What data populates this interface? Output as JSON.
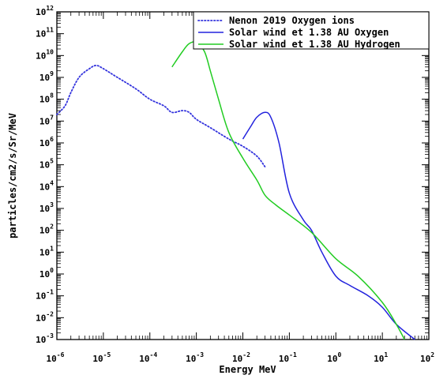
{
  "chart_data": {
    "type": "line",
    "xlabel": "Energy MeV",
    "ylabel": "particles/cm2/s/Sr/MeV",
    "xscale": "log",
    "yscale": "log",
    "xlim": [
      1e-06,
      100
    ],
    "ylim": [
      0.001,
      1000000000000.0
    ],
    "grid": false,
    "legend_position": "top-right",
    "x_tick_labels": [
      "10-6",
      "10-5",
      "10-4",
      "10-3",
      "10-2",
      "10-1",
      "100",
      "101",
      "102"
    ],
    "y_tick_labels": [
      "10-3",
      "10-2",
      "10-1",
      "100",
      "101",
      "102",
      "103",
      "104",
      "105",
      "106",
      "107",
      "108",
      "109",
      "1010",
      "1011",
      "1012"
    ],
    "series": [
      {
        "name": "Nenon 2019 Oxygen ions",
        "color": "#3333dd",
        "style": "dotted",
        "x": [
          1e-06,
          1.5e-06,
          2e-06,
          3e-06,
          5e-06,
          7e-06,
          1e-05,
          2e-05,
          5e-05,
          0.0001,
          0.0002,
          0.0003,
          0.0005,
          0.0007,
          0.001,
          0.002,
          0.005,
          0.01,
          0.02,
          0.03
        ],
        "y": [
          20000000.0,
          50000000.0,
          200000000.0,
          1000000000.0,
          2500000000.0,
          3500000000.0,
          2500000000.0,
          1000000000.0,
          300000000.0,
          100000000.0,
          50000000.0,
          25000000.0,
          30000000.0,
          25000000.0,
          12000000.0,
          5000000.0,
          1500000.0,
          700000.0,
          250000.0,
          80000.0
        ]
      },
      {
        "name": "Solar wind et 1.38 AU Oxygen",
        "color": "#2222dd",
        "style": "solid",
        "x": [
          0.01,
          0.015,
          0.02,
          0.03,
          0.04,
          0.06,
          0.1,
          0.2,
          0.3,
          0.5,
          1,
          2,
          5,
          10,
          20,
          50
        ],
        "y": [
          1500000.0,
          6000000.0,
          15000000.0,
          25000000.0,
          15000000.0,
          1000000.0,
          5000.0,
          300,
          100,
          10,
          0.8,
          0.3,
          0.1,
          0.03,
          0.005,
          0.001
        ]
      },
      {
        "name": "Solar wind et 1.38 AU Hydrogen",
        "color": "#22cc22",
        "style": "solid",
        "x": [
          0.0003,
          0.0005,
          0.0007,
          0.001,
          0.0015,
          0.002,
          0.003,
          0.005,
          0.01,
          0.02,
          0.03,
          0.05,
          0.1,
          0.3,
          1,
          3,
          10,
          20,
          30
        ],
        "y": [
          3000000000.0,
          15000000000.0,
          35000000000.0,
          40000000000.0,
          15000000000.0,
          2000000000.0,
          100000000.0,
          3000000.0,
          200000.0,
          20000.0,
          4000.0,
          1500.0,
          500,
          80,
          5,
          0.8,
          0.05,
          0.005,
          0.001
        ]
      }
    ]
  }
}
